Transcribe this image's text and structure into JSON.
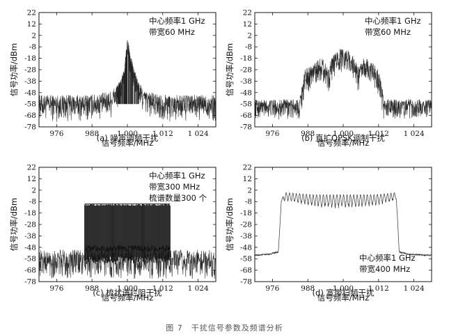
{
  "figure": {
    "caption": "图 7　干扰信号参数及频谱分析"
  },
  "common_axes": {
    "xlabel": "信号频率/MHz",
    "ylabel": "信号功率/dBm",
    "xlim": [
      970,
      1030
    ],
    "ylim": [
      -78,
      22
    ],
    "x_ticks": [
      976,
      988,
      1000,
      1012,
      1024
    ],
    "x_tick_labels": [
      "976",
      "988",
      "1 000",
      "1 012",
      "1 024"
    ],
    "y_ticks": [
      22,
      12,
      2,
      -8,
      -18,
      -28,
      -38,
      -48,
      -58,
      -68,
      -78
    ],
    "y_tick_labels": [
      "22",
      "12",
      "2",
      "-8",
      "-18",
      "-28",
      "-38",
      "-48",
      "-58",
      "-68",
      "-78"
    ]
  },
  "chart_data": [
    {
      "id": "a",
      "type": "line",
      "caption": "(a) 噪声调频干扰",
      "annotation": [
        "中心频率1 GHz",
        "带宽60 MHz"
      ],
      "annotation_pos": "top-right",
      "xlabel": "信号频率/MHz",
      "ylabel": "信号功率/dBm",
      "xlim": [
        970,
        1030
      ],
      "ylim": [
        -78,
        22
      ],
      "series": [
        {
          "x": [
            970,
            975,
            980,
            985,
            990,
            994,
            996,
            997,
            998,
            999,
            999.5,
            1000,
            1000.5,
            1001,
            1002,
            1003,
            1004,
            1006,
            1010,
            1015,
            1020,
            1025,
            1030
          ],
          "y": [
            -56,
            -56,
            -56,
            -56,
            -55,
            -53,
            -48,
            -45,
            -40,
            -33,
            -18,
            -5,
            -10,
            -20,
            -30,
            -38,
            -45,
            -52,
            -55,
            -56,
            -56,
            -56,
            -56
          ],
          "noise_floor": -78,
          "noise_top": -48
        }
      ]
    },
    {
      "id": "b",
      "type": "line",
      "caption": "(b) 直扩QPSK调制干扰",
      "annotation": [
        "中心频率1 GHz",
        "带宽60 MHz"
      ],
      "annotation_pos": "top-right",
      "xlabel": "信号频率/MHz",
      "ylabel": "信号功率/dBm",
      "xlim": [
        970,
        1030
      ],
      "ylim": [
        -78,
        22
      ],
      "series": [
        {
          "x": [
            970,
            980,
            985,
            986,
            987,
            988,
            990,
            992,
            993,
            994,
            995,
            996,
            998,
            1000,
            1002,
            1004,
            1005,
            1006,
            1007,
            1008,
            1010,
            1012,
            1013,
            1014,
            1015,
            1020,
            1030
          ],
          "y": [
            -58,
            -58,
            -58,
            -45,
            -32,
            -30,
            -26,
            -22,
            -22,
            -26,
            -30,
            -22,
            -15,
            -12,
            -15,
            -22,
            -30,
            -26,
            -22,
            -22,
            -26,
            -32,
            -45,
            -58,
            -58,
            -58,
            -58
          ],
          "noise_floor": -72,
          "noise_top": -50
        }
      ]
    },
    {
      "id": "c",
      "type": "line",
      "caption": "(c) 梳状谱拦阻干扰",
      "annotation": [
        "中心频率1 GHz",
        "带宽300 MHz",
        "梳谱数量300 个"
      ],
      "annotation_pos": "top-right",
      "xlabel": "信号频率/MHz",
      "ylabel": "信号功率/dBm",
      "xlim": [
        970,
        1030
      ],
      "ylim": [
        -78,
        22
      ],
      "series": [
        {
          "x": [
            970,
            985,
            985.5,
            1014.5,
            1015,
            1030
          ],
          "y": [
            -57,
            -57,
            -10,
            -10,
            -57,
            -57
          ],
          "comb_start": 985.5,
          "comb_end": 1014.5,
          "comb_top": -10,
          "comb_bottom": -62,
          "noise_floor": -76,
          "noise_top": -50
        }
      ]
    },
    {
      "id": "d",
      "type": "line",
      "caption": "(d) 宽带扫频干扰",
      "annotation": [
        "中心频率1 GHz",
        "带宽400 MHz"
      ],
      "annotation_pos": "bottom-right",
      "xlabel": "信号频率/MHz",
      "ylabel": "信号功率/dBm",
      "xlim": [
        970,
        1030
      ],
      "ylim": [
        -78,
        22
      ],
      "series": [
        {
          "x": [
            970,
            975,
            978,
            979,
            980,
            985,
            990,
            995,
            1000,
            1005,
            1010,
            1015,
            1018,
            1019,
            1022,
            1030
          ],
          "y": [
            -55,
            -54,
            -52,
            -8,
            0,
            -1,
            -2,
            -2,
            -2,
            -2,
            -2,
            -1,
            0,
            -52,
            -54,
            -55
          ],
          "ripple_depth": 10,
          "ripple_count": 34
        }
      ]
    }
  ]
}
